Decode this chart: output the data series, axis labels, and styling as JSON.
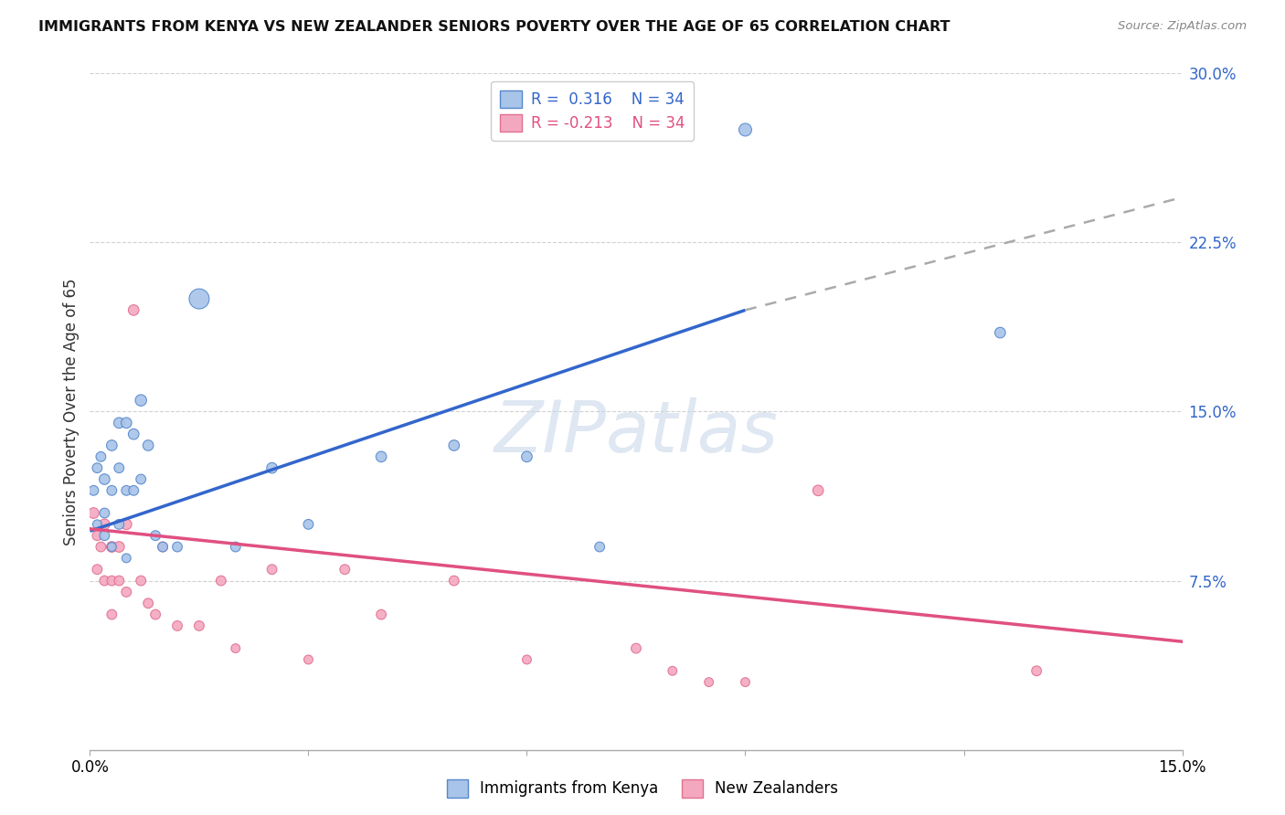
{
  "title": "IMMIGRANTS FROM KENYA VS NEW ZEALANDER SENIORS POVERTY OVER THE AGE OF 65 CORRELATION CHART",
  "source": "Source: ZipAtlas.com",
  "ylabel": "Seniors Poverty Over the Age of 65",
  "xlim": [
    0.0,
    0.15
  ],
  "ylim": [
    0.0,
    0.3
  ],
  "xtick_positions": [
    0.0,
    0.03,
    0.06,
    0.09,
    0.12,
    0.15
  ],
  "xtick_labels": [
    "0.0%",
    "",
    "",
    "",
    "",
    "15.0%"
  ],
  "ytick_positions_right": [
    0.075,
    0.15,
    0.225,
    0.3
  ],
  "ytick_labels_right": [
    "7.5%",
    "15.0%",
    "22.5%",
    "30.0%"
  ],
  "kenya_color": "#a8c4e8",
  "nz_color": "#f4a8c0",
  "kenya_edge_color": "#5588cc",
  "nz_edge_color": "#e07090",
  "kenya_line_color": "#3366cc",
  "nz_line_color": "#e05080",
  "trend_ext_color": "#aaaaaa",
  "watermark": "ZIPatlas",
  "watermark_color": "#c8d8ea",
  "background_color": "#ffffff",
  "grid_color": "#cccccc",
  "kenya_scatter_x": [
    0.0005,
    0.001,
    0.001,
    0.0015,
    0.002,
    0.002,
    0.002,
    0.003,
    0.003,
    0.003,
    0.004,
    0.004,
    0.004,
    0.005,
    0.005,
    0.005,
    0.006,
    0.006,
    0.007,
    0.007,
    0.008,
    0.009,
    0.01,
    0.012,
    0.015,
    0.02,
    0.025,
    0.03,
    0.04,
    0.05,
    0.06,
    0.07,
    0.09,
    0.125
  ],
  "kenya_scatter_y": [
    0.115,
    0.125,
    0.1,
    0.13,
    0.12,
    0.105,
    0.095,
    0.135,
    0.115,
    0.09,
    0.145,
    0.125,
    0.1,
    0.145,
    0.115,
    0.085,
    0.14,
    0.115,
    0.155,
    0.12,
    0.135,
    0.095,
    0.09,
    0.09,
    0.2,
    0.09,
    0.125,
    0.1,
    0.13,
    0.135,
    0.13,
    0.09,
    0.275,
    0.185
  ],
  "kenya_scatter_size": [
    60,
    60,
    50,
    60,
    70,
    60,
    60,
    70,
    60,
    50,
    70,
    60,
    60,
    70,
    60,
    50,
    70,
    60,
    80,
    60,
    70,
    60,
    60,
    60,
    250,
    60,
    70,
    60,
    70,
    70,
    70,
    60,
    100,
    70
  ],
  "nz_scatter_x": [
    0.0005,
    0.001,
    0.001,
    0.0015,
    0.002,
    0.002,
    0.003,
    0.003,
    0.003,
    0.004,
    0.004,
    0.005,
    0.005,
    0.006,
    0.007,
    0.008,
    0.009,
    0.01,
    0.012,
    0.015,
    0.018,
    0.02,
    0.025,
    0.03,
    0.035,
    0.04,
    0.05,
    0.06,
    0.075,
    0.08,
    0.085,
    0.09,
    0.1,
    0.13
  ],
  "nz_scatter_y": [
    0.105,
    0.095,
    0.08,
    0.09,
    0.1,
    0.075,
    0.09,
    0.075,
    0.06,
    0.09,
    0.075,
    0.1,
    0.07,
    0.195,
    0.075,
    0.065,
    0.06,
    0.09,
    0.055,
    0.055,
    0.075,
    0.045,
    0.08,
    0.04,
    0.08,
    0.06,
    0.075,
    0.04,
    0.045,
    0.035,
    0.03,
    0.03,
    0.115,
    0.035
  ],
  "nz_scatter_size": [
    70,
    60,
    60,
    60,
    70,
    60,
    70,
    60,
    60,
    70,
    60,
    70,
    60,
    70,
    60,
    60,
    60,
    60,
    60,
    60,
    60,
    50,
    60,
    50,
    60,
    60,
    60,
    50,
    60,
    50,
    50,
    50,
    70,
    60
  ],
  "kenya_trend_x0": 0.0,
  "kenya_trend_y0": 0.097,
  "kenya_trend_x1": 0.09,
  "kenya_trend_y1": 0.195,
  "kenya_trend_ext_x1": 0.15,
  "kenya_trend_ext_y1": 0.245,
  "nz_trend_x0": 0.0,
  "nz_trend_y0": 0.098,
  "nz_trend_x1": 0.15,
  "nz_trend_y1": 0.048
}
